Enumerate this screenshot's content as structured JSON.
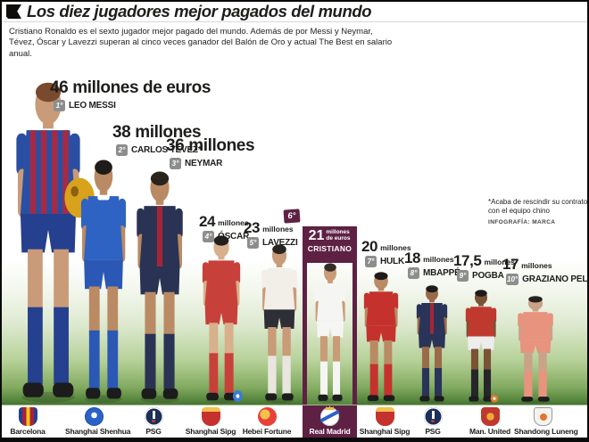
{
  "header": {
    "title": "Los diez jugadores mejor pagados del mundo"
  },
  "intro": "Cristiano Ronaldo es el sexto jugador mejor pagado del mundo. Además de por Messi y Neymar, Tévez, Óscar y Lavezzi superan al cinco veces ganador del Balón de Oro y actual The Best en salario anual.",
  "footnote": {
    "text": "*Acaba de rescindir su contrato con el equipo chino",
    "credit": "INFOGRAFÍA: MARCA"
  },
  "colors": {
    "accent_maroon": "#5e2144",
    "badge_grey": "#8d8d8d",
    "field_green": "#4c7c35",
    "title_black": "#1d1d1b"
  },
  "players": [
    {
      "rank": "1°",
      "salary_num": "46",
      "salary_unit": "millones de euros",
      "name": "LEO MESSI",
      "club": "Barcelona",
      "kit": {
        "shirt": "#2a4fa2",
        "accent": "#a52a45",
        "shorts": "#25408f",
        "socks": "#25408f",
        "skin": "#c99b78",
        "hair": "#7a4a2e"
      }
    },
    {
      "rank": "2°",
      "salary_num": "38",
      "salary_unit": "millones",
      "name": "CARLOS TÉVEZ*",
      "club": "Shanghai Shenhua",
      "kit": {
        "shirt": "#2e63c4",
        "accent": "#ffffff",
        "shorts": "#2a58b4",
        "socks": "#2a58b4",
        "skin": "#b98a63",
        "hair": "#1e1c1a"
      }
    },
    {
      "rank": "3°",
      "salary_num": "36",
      "salary_unit": "millones",
      "name": "NEYMAR",
      "club": "PSG",
      "kit": {
        "shirt": "#2a3354",
        "accent": "#a32638",
        "shorts": "#2a3354",
        "socks": "#2a3354",
        "skin": "#b98a63",
        "hair": "#2a241f"
      }
    },
    {
      "rank": "4°",
      "salary_num": "24",
      "salary_unit": "millones",
      "name": "ÓSCAR",
      "club": "Shanghai Sipg",
      "kit": {
        "shirt": "#c8403a",
        "accent": "#ffffff",
        "shorts": "#c8403a",
        "socks": "#c8403a",
        "skin": "#d8b08c",
        "hair": "#241f1c"
      }
    },
    {
      "rank": "5°",
      "salary_num": "23",
      "salary_unit": "millones",
      "name": "LAVEZZI",
      "club": "Hebei Fortune",
      "kit": {
        "shirt": "#f1efe8",
        "accent": "#c8403a",
        "shorts": "#2e2e36",
        "socks": "#e8e6df",
        "skin": "#c99b78",
        "hair": "#2a2520"
      }
    },
    {
      "rank": "6°",
      "salary_num": "21",
      "salary_unit": "millones de euros",
      "name": "CRISTIANO",
      "club": "Real Madrid",
      "kit": {
        "shirt": "#f5f5f3",
        "accent": "#e8e8e4",
        "shorts": "#f5f5f3",
        "socks": "#f5f5f3",
        "skin": "#c99b78",
        "hair": "#332d26"
      }
    },
    {
      "rank": "7°",
      "salary_num": "20",
      "salary_unit": "millones",
      "name": "HULK",
      "club": "Shanghai Sipg",
      "kit": {
        "shirt": "#c5322e",
        "accent": "#a82825",
        "shorts": "#c5322e",
        "socks": "#c5322e",
        "skin": "#b98a63",
        "hair": "#1e1c1a"
      }
    },
    {
      "rank": "8°",
      "salary_num": "18",
      "salary_unit": "millones",
      "name": "MBAPPÉ",
      "club": "PSG",
      "kit": {
        "shirt": "#2a3358",
        "accent": "#a32638",
        "shorts": "#2a3358",
        "socks": "#2a3358",
        "skin": "#9a6b4a",
        "hair": "#1e1c1a"
      }
    },
    {
      "rank": "9°",
      "salary_num": "17,5",
      "salary_unit": "millones",
      "name": "POGBA",
      "club": "Man. United",
      "kit": {
        "shirt": "#c0392f",
        "accent": "#a82825",
        "shorts": "#ededed",
        "socks": "#26262a",
        "skin": "#7a5236",
        "hair": "#1e1c1a"
      }
    },
    {
      "rank": "10°",
      "salary_num": "17",
      "salary_unit": "millones",
      "name": "GRAZIANO PELLÈ",
      "club": "Shandong Luneng",
      "kit": {
        "shirt": "#e8937e",
        "accent": "#d9806b",
        "shorts": "#e8937e",
        "socks": "#e8937e",
        "skin": "#caa287",
        "hair": "#26211d"
      }
    }
  ],
  "clubs": [
    "Barcelona",
    "Shanghai Shenhua",
    "PSG",
    "Shanghai Sipg",
    "Hebei Fortune",
    "Real Madrid",
    "Shanghai Sipg",
    "PSG",
    "Man. United",
    "Shandong Luneng"
  ],
  "chart_data": {
    "type": "bar",
    "subtype": "pictorial-ranking",
    "title": "Los diez jugadores mejor pagados del mundo",
    "categories": [
      "Leo Messi",
      "Carlos Tévez",
      "Neymar",
      "Óscar",
      "Lavezzi",
      "Cristiano",
      "Hulk",
      "Mbappé",
      "Pogba",
      "Graziano Pellè"
    ],
    "values": [
      46,
      38,
      36,
      24,
      23,
      21,
      20,
      18,
      17.5,
      17
    ],
    "unit": "millones de euros (salario anual)",
    "clubs": [
      "Barcelona",
      "Shanghai Shenhua",
      "PSG",
      "Shanghai Sipg",
      "Hebei Fortune",
      "Real Madrid",
      "Shanghai Sipg",
      "PSG",
      "Man. United",
      "Shandong Luneng"
    ],
    "highlighted_category": "Cristiano",
    "ylim": [
      0,
      46
    ],
    "legend_position": "none",
    "grid": false
  }
}
